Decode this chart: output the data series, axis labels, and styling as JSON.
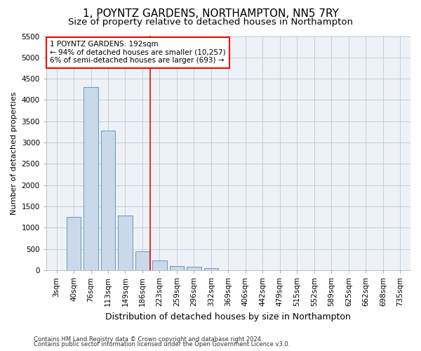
{
  "title": "1, POYNTZ GARDENS, NORTHAMPTON, NN5 7RY",
  "subtitle": "Size of property relative to detached houses in Northampton",
  "xlabel": "Distribution of detached houses by size in Northampton",
  "ylabel": "Number of detached properties",
  "footer_line1": "Contains HM Land Registry data © Crown copyright and database right 2024.",
  "footer_line2": "Contains public sector information licensed under the Open Government Licence v3.0.",
  "bar_labels": [
    "3sqm",
    "40sqm",
    "76sqm",
    "113sqm",
    "149sqm",
    "186sqm",
    "223sqm",
    "259sqm",
    "296sqm",
    "332sqm",
    "369sqm",
    "406sqm",
    "442sqm",
    "479sqm",
    "515sqm",
    "552sqm",
    "589sqm",
    "625sqm",
    "662sqm",
    "698sqm",
    "735sqm"
  ],
  "bar_values": [
    0,
    1250,
    4300,
    3280,
    1280,
    450,
    230,
    100,
    80,
    50,
    0,
    0,
    0,
    0,
    0,
    0,
    0,
    0,
    0,
    0,
    0
  ],
  "bar_color": "#c9d9e9",
  "bar_edge_color": "#6699bb",
  "vline_x_index": 5.45,
  "vline_color": "red",
  "annotation_line1": "1 POYNTZ GARDENS: 192sqm",
  "annotation_line2": "← 94% of detached houses are smaller (10,257)",
  "annotation_line3": "6% of semi-detached houses are larger (693) →",
  "annotation_box_facecolor": "white",
  "annotation_box_edgecolor": "red",
  "ylim": [
    0,
    5500
  ],
  "yticks": [
    0,
    500,
    1000,
    1500,
    2000,
    2500,
    3000,
    3500,
    4000,
    4500,
    5000,
    5500
  ],
  "background_color": "#ffffff",
  "plot_background_color": "#eef2f7",
  "grid_color": "#b0bfcf",
  "title_fontsize": 11,
  "subtitle_fontsize": 9.5,
  "xlabel_fontsize": 9,
  "ylabel_fontsize": 8,
  "tick_fontsize": 7.5,
  "annotation_fontsize": 7.5,
  "footer_fontsize": 6
}
